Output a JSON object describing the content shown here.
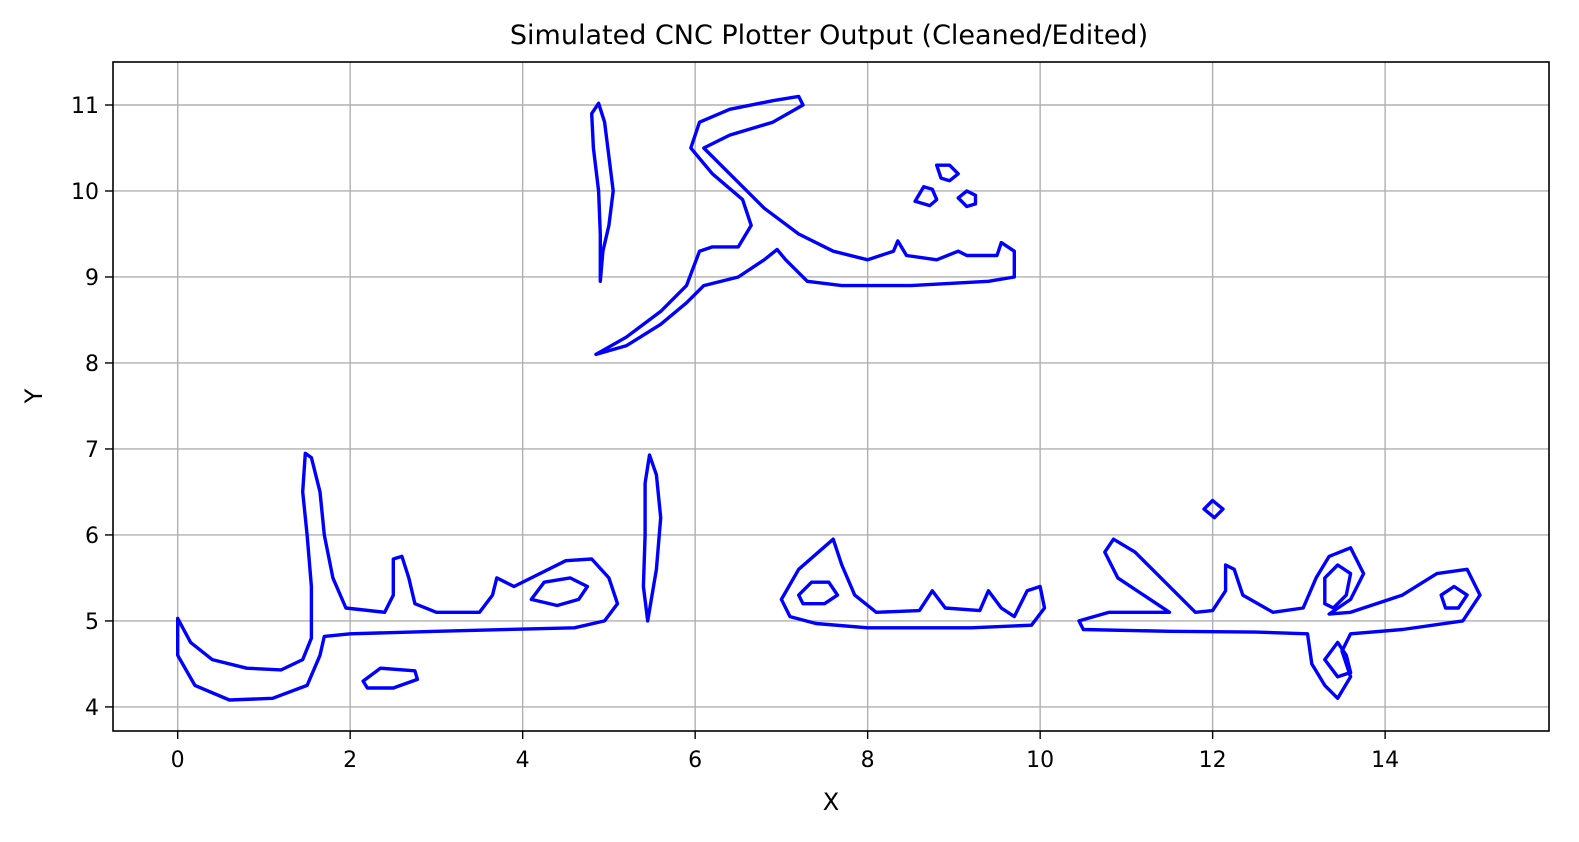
{
  "chart_data": {
    "type": "line",
    "title": "Simulated CNC Plotter Output (Cleaned/Edited)",
    "xlabel": "X",
    "ylabel": "Y",
    "xlim": [
      -0.75,
      15.9
    ],
    "ylim": [
      3.72,
      11.5
    ],
    "xticks": [
      0,
      2,
      4,
      6,
      8,
      10,
      12,
      14
    ],
    "yticks": [
      4,
      5,
      6,
      7,
      8,
      9,
      10,
      11
    ],
    "grid": true,
    "line_color": "#0000ff",
    "series": [
      {
        "points": [
          [
            4.9,
            8.95
          ],
          [
            4.93,
            9.3
          ],
          [
            5.0,
            9.6
          ],
          [
            5.05,
            10.0
          ],
          [
            5.0,
            10.4
          ],
          [
            4.95,
            10.8
          ],
          [
            4.88,
            11.02
          ],
          [
            4.8,
            10.9
          ],
          [
            4.82,
            10.5
          ],
          [
            4.88,
            10.0
          ],
          [
            4.9,
            9.5
          ],
          [
            4.9,
            8.95
          ]
        ]
      },
      {
        "points": [
          [
            4.85,
            8.1
          ],
          [
            5.2,
            8.3
          ],
          [
            5.6,
            8.6
          ],
          [
            5.9,
            8.9
          ],
          [
            6.05,
            9.3
          ],
          [
            6.2,
            9.35
          ],
          [
            6.5,
            9.35
          ],
          [
            6.65,
            9.6
          ],
          [
            6.55,
            9.9
          ],
          [
            6.2,
            10.2
          ],
          [
            5.95,
            10.5
          ],
          [
            6.05,
            10.8
          ],
          [
            6.4,
            10.95
          ],
          [
            6.9,
            11.05
          ],
          [
            7.2,
            11.1
          ],
          [
            7.25,
            11.0
          ],
          [
            6.9,
            10.8
          ],
          [
            6.4,
            10.65
          ],
          [
            6.1,
            10.5
          ],
          [
            6.4,
            10.2
          ],
          [
            6.8,
            9.8
          ],
          [
            7.2,
            9.5
          ],
          [
            7.6,
            9.3
          ],
          [
            8.0,
            9.2
          ],
          [
            8.3,
            9.3
          ],
          [
            8.35,
            9.42
          ],
          [
            8.45,
            9.25
          ],
          [
            8.8,
            9.2
          ],
          [
            9.05,
            9.3
          ],
          [
            9.15,
            9.25
          ],
          [
            9.5,
            9.25
          ],
          [
            9.55,
            9.4
          ],
          [
            9.7,
            9.3
          ],
          [
            9.7,
            9.0
          ],
          [
            9.4,
            8.95
          ],
          [
            8.5,
            8.9
          ],
          [
            7.7,
            8.9
          ],
          [
            7.3,
            8.95
          ],
          [
            7.05,
            9.2
          ],
          [
            6.95,
            9.32
          ],
          [
            6.8,
            9.2
          ],
          [
            6.5,
            9.0
          ],
          [
            6.1,
            8.9
          ],
          [
            5.9,
            8.7
          ],
          [
            5.6,
            8.45
          ],
          [
            5.2,
            8.2
          ],
          [
            4.85,
            8.1
          ]
        ]
      },
      {
        "points": [
          [
            8.55,
            9.88
          ],
          [
            8.65,
            10.05
          ],
          [
            8.75,
            10.02
          ],
          [
            8.8,
            9.9
          ],
          [
            8.72,
            9.83
          ],
          [
            8.55,
            9.88
          ]
        ]
      },
      {
        "points": [
          [
            8.8,
            10.3
          ],
          [
            8.95,
            10.3
          ],
          [
            9.05,
            10.2
          ],
          [
            8.95,
            10.12
          ],
          [
            8.85,
            10.15
          ],
          [
            8.8,
            10.3
          ]
        ]
      },
      {
        "points": [
          [
            9.05,
            9.92
          ],
          [
            9.15,
            10.0
          ],
          [
            9.25,
            9.95
          ],
          [
            9.25,
            9.85
          ],
          [
            9.15,
            9.82
          ],
          [
            9.05,
            9.92
          ]
        ]
      },
      {
        "points": [
          [
            0.0,
            5.03
          ],
          [
            0.15,
            4.75
          ],
          [
            0.4,
            4.55
          ],
          [
            0.8,
            4.45
          ],
          [
            1.2,
            4.43
          ],
          [
            1.45,
            4.55
          ],
          [
            1.55,
            4.8
          ],
          [
            1.55,
            5.4
          ],
          [
            1.5,
            6.0
          ],
          [
            1.45,
            6.5
          ],
          [
            1.48,
            6.95
          ],
          [
            1.55,
            6.9
          ],
          [
            1.65,
            6.5
          ],
          [
            1.7,
            6.0
          ],
          [
            1.8,
            5.5
          ],
          [
            1.95,
            5.15
          ],
          [
            2.4,
            5.1
          ],
          [
            2.5,
            5.3
          ],
          [
            2.5,
            5.72
          ],
          [
            2.6,
            5.75
          ],
          [
            2.68,
            5.5
          ],
          [
            2.75,
            5.2
          ],
          [
            3.0,
            5.1
          ],
          [
            3.5,
            5.1
          ],
          [
            3.65,
            5.3
          ],
          [
            3.7,
            5.5
          ],
          [
            3.8,
            5.45
          ],
          [
            3.9,
            5.4
          ],
          [
            4.1,
            5.5
          ],
          [
            4.5,
            5.7
          ],
          [
            4.8,
            5.72
          ],
          [
            5.0,
            5.5
          ],
          [
            5.1,
            5.2
          ],
          [
            4.95,
            5.0
          ],
          [
            4.6,
            4.92
          ],
          [
            3.0,
            4.88
          ],
          [
            2.0,
            4.85
          ],
          [
            1.7,
            4.82
          ],
          [
            1.65,
            4.6
          ],
          [
            1.5,
            4.25
          ],
          [
            1.1,
            4.1
          ],
          [
            0.6,
            4.08
          ],
          [
            0.2,
            4.25
          ],
          [
            0.0,
            4.6
          ],
          [
            0.0,
            5.03
          ]
        ]
      },
      {
        "points": [
          [
            4.1,
            5.25
          ],
          [
            4.25,
            5.45
          ],
          [
            4.55,
            5.5
          ],
          [
            4.75,
            5.4
          ],
          [
            4.65,
            5.25
          ],
          [
            4.4,
            5.18
          ],
          [
            4.1,
            5.25
          ]
        ]
      },
      {
        "points": [
          [
            2.15,
            4.3
          ],
          [
            2.35,
            4.45
          ],
          [
            2.75,
            4.42
          ],
          [
            2.78,
            4.32
          ],
          [
            2.5,
            4.22
          ],
          [
            2.2,
            4.22
          ],
          [
            2.15,
            4.3
          ]
        ]
      },
      {
        "points": [
          [
            5.45,
            5.0
          ],
          [
            5.55,
            5.6
          ],
          [
            5.6,
            6.2
          ],
          [
            5.55,
            6.7
          ],
          [
            5.47,
            6.93
          ],
          [
            5.42,
            6.6
          ],
          [
            5.42,
            6.0
          ],
          [
            5.4,
            5.4
          ],
          [
            5.45,
            5.0
          ]
        ]
      },
      {
        "points": [
          [
            7.0,
            5.25
          ],
          [
            7.2,
            5.6
          ],
          [
            7.6,
            5.95
          ],
          [
            7.7,
            5.65
          ],
          [
            7.85,
            5.3
          ],
          [
            8.1,
            5.1
          ],
          [
            8.6,
            5.12
          ],
          [
            8.75,
            5.35
          ],
          [
            8.9,
            5.15
          ],
          [
            9.3,
            5.12
          ],
          [
            9.4,
            5.35
          ],
          [
            9.55,
            5.15
          ],
          [
            9.7,
            5.05
          ],
          [
            9.85,
            5.35
          ],
          [
            10.0,
            5.4
          ],
          [
            10.05,
            5.15
          ],
          [
            9.9,
            4.95
          ],
          [
            9.2,
            4.92
          ],
          [
            8.0,
            4.92
          ],
          [
            7.4,
            4.97
          ],
          [
            7.1,
            5.05
          ],
          [
            7.0,
            5.25
          ]
        ]
      },
      {
        "points": [
          [
            7.2,
            5.3
          ],
          [
            7.35,
            5.45
          ],
          [
            7.55,
            5.45
          ],
          [
            7.65,
            5.3
          ],
          [
            7.5,
            5.2
          ],
          [
            7.25,
            5.2
          ],
          [
            7.2,
            5.3
          ]
        ]
      },
      {
        "points": [
          [
            10.45,
            5.0
          ],
          [
            10.8,
            5.1
          ],
          [
            11.5,
            5.1
          ],
          [
            11.2,
            5.3
          ],
          [
            10.9,
            5.5
          ],
          [
            10.75,
            5.8
          ],
          [
            10.85,
            5.95
          ],
          [
            11.1,
            5.8
          ],
          [
            11.3,
            5.6
          ],
          [
            11.6,
            5.3
          ],
          [
            11.8,
            5.1
          ],
          [
            12.0,
            5.12
          ],
          [
            12.15,
            5.35
          ],
          [
            12.15,
            5.65
          ],
          [
            12.25,
            5.6
          ],
          [
            12.35,
            5.3
          ],
          [
            12.7,
            5.1
          ],
          [
            13.05,
            5.15
          ],
          [
            13.2,
            5.5
          ],
          [
            13.35,
            5.75
          ],
          [
            13.6,
            5.85
          ],
          [
            13.75,
            5.55
          ],
          [
            13.6,
            5.25
          ],
          [
            13.35,
            5.08
          ],
          [
            13.6,
            5.1
          ],
          [
            14.2,
            5.3
          ],
          [
            14.6,
            5.55
          ],
          [
            14.95,
            5.6
          ],
          [
            15.1,
            5.3
          ],
          [
            14.9,
            5.0
          ],
          [
            14.2,
            4.9
          ],
          [
            13.6,
            4.85
          ],
          [
            13.5,
            4.65
          ],
          [
            13.6,
            4.35
          ],
          [
            13.45,
            4.1
          ],
          [
            13.3,
            4.25
          ],
          [
            13.15,
            4.5
          ],
          [
            13.1,
            4.85
          ],
          [
            12.5,
            4.87
          ],
          [
            11.5,
            4.88
          ],
          [
            10.5,
            4.9
          ],
          [
            10.45,
            5.0
          ]
        ]
      },
      {
        "points": [
          [
            13.3,
            5.2
          ],
          [
            13.3,
            5.5
          ],
          [
            13.45,
            5.65
          ],
          [
            13.6,
            5.55
          ],
          [
            13.55,
            5.3
          ],
          [
            13.4,
            5.15
          ],
          [
            13.3,
            5.2
          ]
        ]
      },
      {
        "points": [
          [
            13.3,
            4.55
          ],
          [
            13.45,
            4.35
          ],
          [
            13.6,
            4.4
          ],
          [
            13.55,
            4.6
          ],
          [
            13.45,
            4.75
          ],
          [
            13.3,
            4.55
          ]
        ]
      },
      {
        "points": [
          [
            14.65,
            5.3
          ],
          [
            14.8,
            5.4
          ],
          [
            14.95,
            5.3
          ],
          [
            14.85,
            5.15
          ],
          [
            14.7,
            5.15
          ],
          [
            14.65,
            5.3
          ]
        ]
      },
      {
        "points": [
          [
            11.9,
            6.3
          ],
          [
            12.0,
            6.4
          ],
          [
            12.12,
            6.3
          ],
          [
            12.02,
            6.2
          ],
          [
            11.9,
            6.3
          ]
        ]
      }
    ]
  }
}
